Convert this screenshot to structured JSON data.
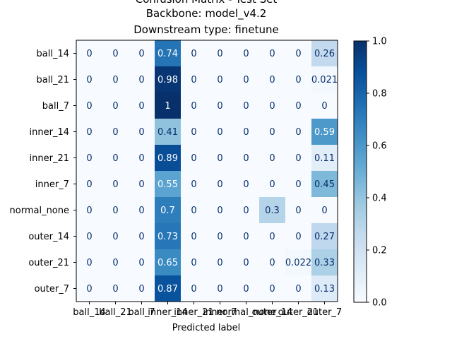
{
  "chart_data": {
    "type": "heatmap",
    "title_lines": [
      "Confusion Matrix - Test Set",
      "Backbone: model_v4.2",
      "Downstream type: finetune"
    ],
    "xlabel": "Predicted label",
    "ylabel": "",
    "row_labels": [
      "ball_14",
      "ball_21",
      "ball_7",
      "inner_14",
      "inner_21",
      "inner_7",
      "normal_none",
      "outer_14",
      "outer_21",
      "outer_7"
    ],
    "col_labels": [
      "ball_14",
      "ball_21",
      "ball_7",
      "inner_14",
      "inner_21",
      "inner_7",
      "normal_none",
      "outer_14",
      "outer_21",
      "outer_7"
    ],
    "cell_labels": [
      [
        "0",
        "0",
        "0",
        "0.74",
        "0",
        "0",
        "0",
        "0",
        "0",
        "0.26"
      ],
      [
        "0",
        "0",
        "0",
        "0.98",
        "0",
        "0",
        "0",
        "0",
        "0",
        "0.021"
      ],
      [
        "0",
        "0",
        "0",
        "1",
        "0",
        "0",
        "0",
        "0",
        "0",
        "0"
      ],
      [
        "0",
        "0",
        "0",
        "0.41",
        "0",
        "0",
        "0",
        "0",
        "0",
        "0.59"
      ],
      [
        "0",
        "0",
        "0",
        "0.89",
        "0",
        "0",
        "0",
        "0",
        "0",
        "0.11"
      ],
      [
        "0",
        "0",
        "0",
        "0.55",
        "0",
        "0",
        "0",
        "0",
        "0",
        "0.45"
      ],
      [
        "0",
        "0",
        "0",
        "0.7",
        "0",
        "0",
        "0",
        "0.3",
        "0",
        "0"
      ],
      [
        "0",
        "0",
        "0",
        "0.73",
        "0",
        "0",
        "0",
        "0",
        "0",
        "0.27"
      ],
      [
        "0",
        "0",
        "0",
        "0.65",
        "0",
        "0",
        "0",
        "0",
        "0.022",
        "0.33"
      ],
      [
        "0",
        "0",
        "0",
        "0.87",
        "0",
        "0",
        "0",
        "0",
        "0",
        "0.13"
      ]
    ],
    "values": [
      [
        0,
        0,
        0,
        0.74,
        0,
        0,
        0,
        0,
        0,
        0.26
      ],
      [
        0,
        0,
        0,
        0.98,
        0,
        0,
        0,
        0,
        0,
        0.021
      ],
      [
        0,
        0,
        0,
        1,
        0,
        0,
        0,
        0,
        0,
        0
      ],
      [
        0,
        0,
        0,
        0.41,
        0,
        0,
        0,
        0,
        0,
        0.59
      ],
      [
        0,
        0,
        0,
        0.89,
        0,
        0,
        0,
        0,
        0,
        0.11
      ],
      [
        0,
        0,
        0,
        0.55,
        0,
        0,
        0,
        0,
        0,
        0.45
      ],
      [
        0,
        0,
        0,
        0.7,
        0,
        0,
        0,
        0.3,
        0,
        0
      ],
      [
        0,
        0,
        0,
        0.73,
        0,
        0,
        0,
        0,
        0,
        0.27
      ],
      [
        0,
        0,
        0,
        0.65,
        0,
        0,
        0,
        0,
        0.022,
        0.33
      ],
      [
        0,
        0,
        0,
        0.87,
        0,
        0,
        0,
        0,
        0,
        0.13
      ]
    ],
    "colormap": "Blues",
    "colorbar": {
      "range": [
        0.0,
        1.0
      ],
      "ticks": [
        0.0,
        0.2,
        0.4,
        0.6,
        0.8,
        1.0
      ],
      "tick_labels": [
        "0.0",
        "0.2",
        "0.4",
        "0.6",
        "0.8",
        "1.0"
      ]
    },
    "grid": false
  }
}
